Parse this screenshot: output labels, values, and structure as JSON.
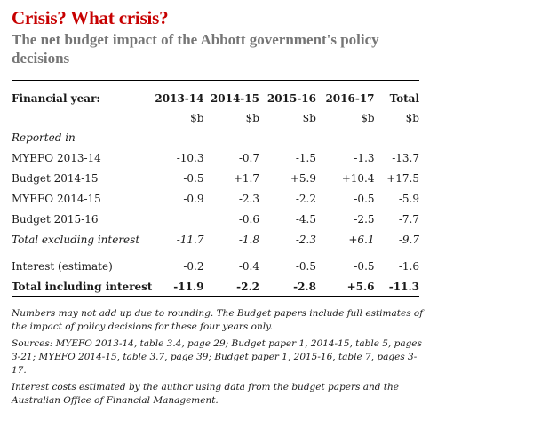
{
  "headline": "Crisis? What crisis?",
  "standfirst": "The net budget impact of the Abbott government's policy decisions",
  "table": {
    "header": [
      "Financial year:",
      "2013-14",
      "2014-15",
      "2015-16",
      "2016-17",
      "Total"
    ],
    "units": [
      "",
      "$b",
      "$b",
      "$b",
      "$b",
      "$b"
    ],
    "section_label": "Reported in",
    "rows": [
      {
        "cells": [
          "MYEFO 2013-14",
          "-10.3",
          "-0.7",
          "-1.5",
          "-1.3",
          "-13.7"
        ],
        "style": "normal"
      },
      {
        "cells": [
          "Budget 2014-15",
          "-0.5",
          "+1.7",
          "+5.9",
          "+10.4",
          "+17.5"
        ],
        "style": "normal"
      },
      {
        "cells": [
          "MYEFO 2014-15",
          "-0.9",
          "-2.3",
          "-2.2",
          "-0.5",
          "-5.9"
        ],
        "style": "normal"
      },
      {
        "cells": [
          "Budget 2015-16",
          "",
          "-0.6",
          "-4.5",
          "-2.5",
          "-7.7"
        ],
        "style": "normal"
      },
      {
        "cells": [
          "Total excluding interest",
          "-11.7",
          "-1.8",
          "-2.3",
          "+6.1",
          "-9.7"
        ],
        "style": "italic"
      },
      {
        "cells": [
          "Interest (estimate)",
          "-0.2",
          "-0.4",
          "-0.5",
          "-0.5",
          "-1.6"
        ],
        "style": "normal"
      },
      {
        "cells": [
          "Total including interest",
          "-11.9",
          "-2.2",
          "-2.8",
          "+5.6",
          "-11.3"
        ],
        "style": "bold"
      }
    ]
  },
  "notes": [
    "Numbers may not add up due to rounding. The Budget papers include full estimates of the impact of policy decisions for these four years only.",
    "Sources: MYEFO 2013-14, table 3.4, page 29; Budget paper 1, 2014-15, table 5, pages 3-21; MYEFO 2014-15, table 3.7, page 39; Budget paper 1, 2015-16, table 7, pages 3-17.",
    "Interest costs estimated by the author using data from the budget papers and the Australian Office of Financial Management."
  ],
  "colors": {
    "headline": "#c70000",
    "standfirst": "#767676"
  }
}
